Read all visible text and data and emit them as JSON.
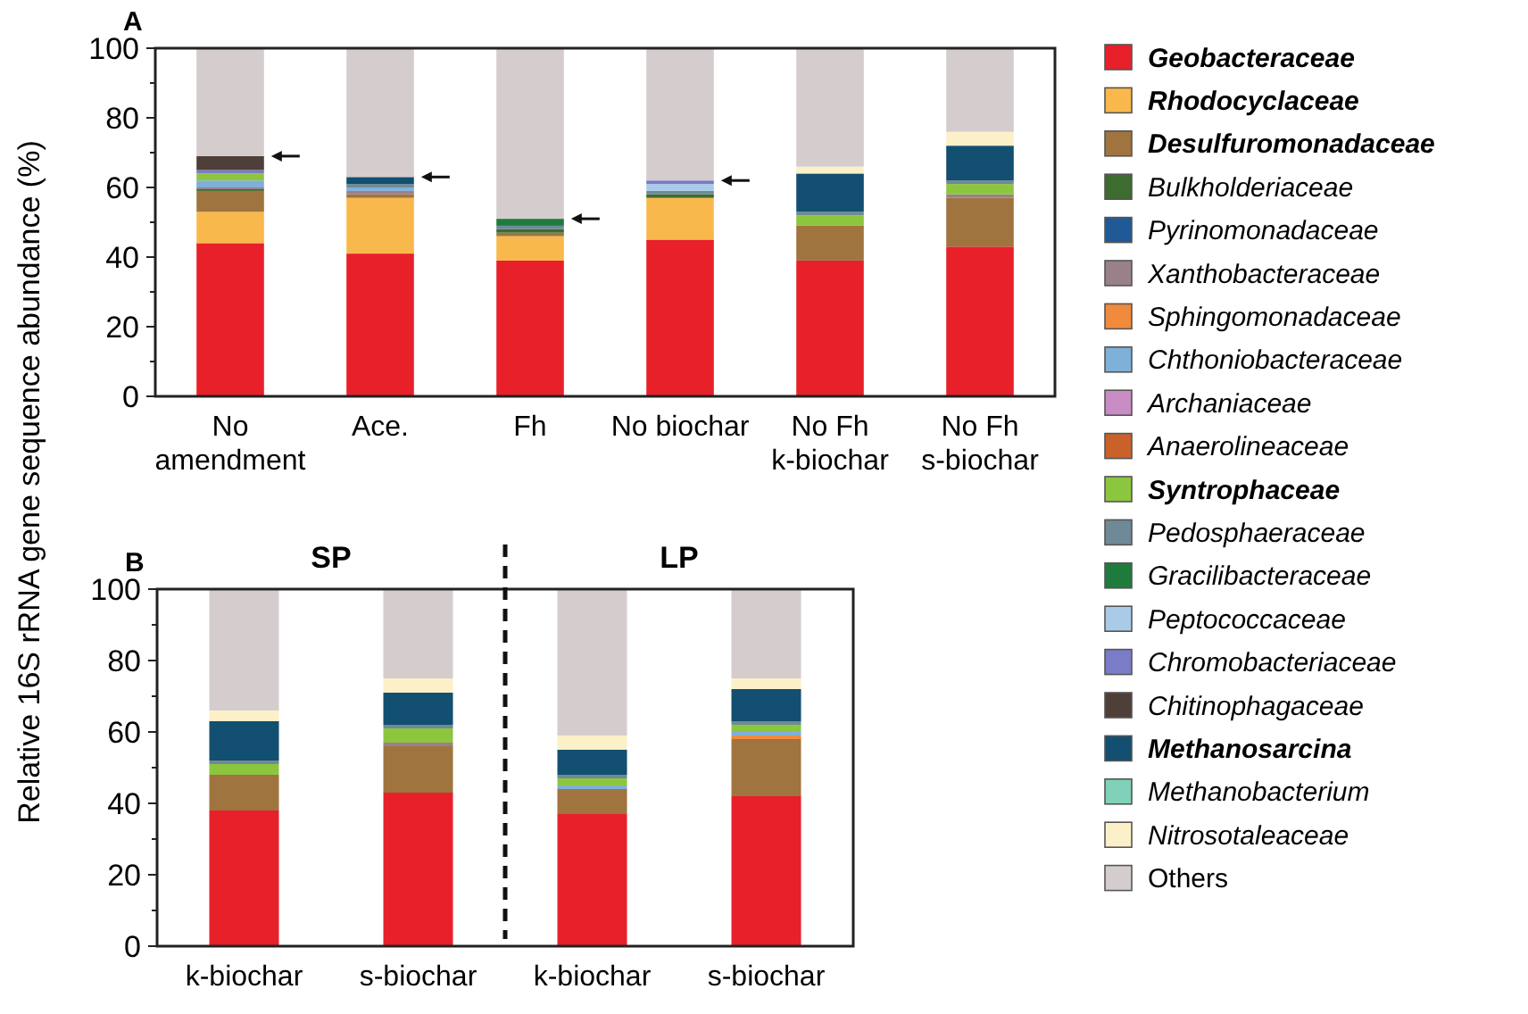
{
  "chart_data": [
    {
      "type": "bar",
      "title": "A",
      "ylabel": "Relative 16S rRNA gene sequence abundance (%)",
      "stacked": true,
      "legend": "right",
      "categories": [
        "No\namendment",
        "Ace.",
        "Fh",
        "No biochar",
        "No Fh\nk-biochar",
        "No Fh\ns-biochar"
      ],
      "ylim": [
        0,
        100
      ],
      "yticks": [
        0,
        20,
        40,
        60,
        80,
        100
      ],
      "series": [
        {
          "name": "Geobacteraceae",
          "color": "#e8202a",
          "values": [
            44,
            41,
            39,
            45,
            39,
            43
          ]
        },
        {
          "name": "Rhodocyclaceae",
          "color": "#f9b84c",
          "values": [
            9,
            16,
            7,
            12,
            0,
            0
          ]
        },
        {
          "name": "Desulfuromonadaceae",
          "color": "#a0743e",
          "values": [
            6,
            1,
            1,
            0,
            10,
            14
          ]
        },
        {
          "name": "Bulkholderiaceae",
          "color": "#3e6b2f",
          "values": [
            0.5,
            0,
            1,
            1,
            0,
            0
          ]
        },
        {
          "name": "Pyrinomonadaceae",
          "color": "#1f5a96",
          "values": [
            0,
            0,
            0,
            0,
            0,
            0
          ]
        },
        {
          "name": "Xanthobacteraceae",
          "color": "#9a8088",
          "values": [
            0.5,
            1,
            0,
            0,
            0,
            1
          ]
        },
        {
          "name": "Sphingomonadaceae",
          "color": "#f08a3c",
          "values": [
            0,
            0,
            0,
            0,
            0,
            0
          ]
        },
        {
          "name": "Chthoniobacteraceae",
          "color": "#7fb0d8",
          "values": [
            2,
            1,
            0,
            0,
            0,
            0
          ]
        },
        {
          "name": "Archaniaceae",
          "color": "#c98cc4",
          "values": [
            0,
            0,
            0,
            0,
            0,
            0
          ]
        },
        {
          "name": "Anaerolineaceae",
          "color": "#c8622a",
          "values": [
            0,
            0,
            0,
            0,
            0,
            0
          ]
        },
        {
          "name": "Syntrophaceae",
          "color": "#8cc63f",
          "values": [
            2,
            0,
            0,
            0,
            3,
            3
          ]
        },
        {
          "name": "Pedosphaeraceae",
          "color": "#6f8a96",
          "values": [
            0,
            1,
            1,
            1,
            1,
            1
          ]
        },
        {
          "name": "Gracilibacteraceae",
          "color": "#1f7a3e",
          "values": [
            0,
            0,
            2,
            0,
            0,
            0
          ]
        },
        {
          "name": "Peptococcaceae",
          "color": "#a9cbe8",
          "values": [
            0,
            0,
            0,
            2,
            0,
            0
          ]
        },
        {
          "name": "Chromobacteriaceae",
          "color": "#7a7cc8",
          "values": [
            1,
            0,
            0,
            1,
            0,
            0
          ]
        },
        {
          "name": "Chitinophagaceae",
          "color": "#4e3f38",
          "values": [
            4,
            0,
            0,
            0,
            0,
            0
          ]
        },
        {
          "name": "Methanosarcina",
          "color": "#134f70",
          "values": [
            0,
            2,
            0,
            0,
            11,
            10
          ]
        },
        {
          "name": "Methanobacterium",
          "color": "#7fd1b9",
          "values": [
            0,
            0,
            0,
            0,
            0,
            0
          ]
        },
        {
          "name": "Nitrosotaleaceae",
          "color": "#fbf0c8",
          "values": [
            0,
            0,
            0,
            0,
            2,
            4
          ]
        },
        {
          "name": "Others",
          "color": "#d5cdcd",
          "values": [
            31,
            37,
            49,
            38,
            34,
            24
          ]
        }
      ]
    },
    {
      "type": "bar",
      "title": "B",
      "stacked": true,
      "annotations": [
        "SP",
        "LP"
      ],
      "categories": [
        "k-biochar",
        "s-biochar",
        "k-biochar",
        "s-biochar"
      ],
      "ylim": [
        0,
        100
      ],
      "yticks": [
        0,
        20,
        40,
        60,
        80,
        100
      ],
      "series": [
        {
          "color": "#e8202a",
          "values": [
            38,
            43,
            37,
            42
          ]
        },
        {
          "color": "#f9b84c",
          "values": [
            0,
            0,
            0,
            0
          ]
        },
        {
          "color": "#a0743e",
          "values": [
            10,
            13,
            7,
            16
          ]
        },
        {
          "color": "#3e6b2f",
          "values": [
            0,
            0,
            0,
            0
          ]
        },
        {
          "color": "#1f5a96",
          "values": [
            0,
            0,
            0,
            0
          ]
        },
        {
          "color": "#9a8088",
          "values": [
            0,
            1,
            0,
            0
          ]
        },
        {
          "color": "#f08a3c",
          "values": [
            0,
            0,
            0,
            1
          ]
        },
        {
          "color": "#7fb0d8",
          "values": [
            0,
            0,
            1,
            1
          ]
        },
        {
          "color": "#c98cc4",
          "values": [
            0,
            0,
            0,
            0
          ]
        },
        {
          "color": "#c8622a",
          "values": [
            0,
            0,
            0,
            0
          ]
        },
        {
          "color": "#8cc63f",
          "values": [
            3,
            4,
            2,
            2
          ]
        },
        {
          "color": "#6f8a96",
          "values": [
            1,
            1,
            1,
            1
          ]
        },
        {
          "color": "#1f7a3e",
          "values": [
            0,
            0,
            0,
            0
          ]
        },
        {
          "color": "#a9cbe8",
          "values": [
            0,
            0,
            0,
            0
          ]
        },
        {
          "color": "#7a7cc8",
          "values": [
            0,
            0,
            0,
            0
          ]
        },
        {
          "color": "#4e3f38",
          "values": [
            0,
            0,
            0,
            0
          ]
        },
        {
          "color": "#134f70",
          "values": [
            11,
            9,
            7,
            9
          ]
        },
        {
          "color": "#7fd1b9",
          "values": [
            0,
            0,
            0,
            0
          ]
        },
        {
          "color": "#fbf0c8",
          "values": [
            3,
            4,
            4,
            3
          ]
        },
        {
          "color": "#d5cdcd",
          "values": [
            34,
            25,
            41,
            25
          ]
        }
      ]
    }
  ]
}
